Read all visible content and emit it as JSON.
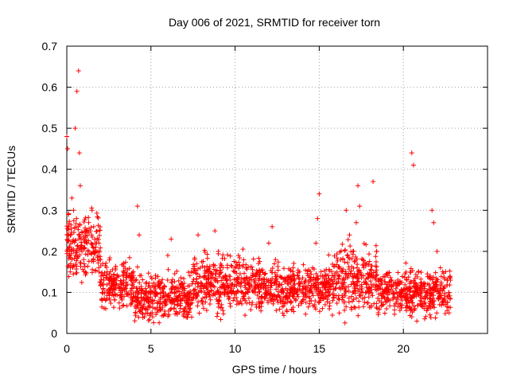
{
  "chart_data": {
    "type": "scatter",
    "title": "Day 006 of 2021, SRMTID for receiver torn",
    "xlabel": "GPS time / hours",
    "ylabel": "SRMTID / TECUs",
    "xlim": [
      0,
      25
    ],
    "ylim": [
      0,
      0.7
    ],
    "xticks": [
      0,
      5,
      10,
      15,
      20
    ],
    "yticks": [
      0,
      0.1,
      0.2,
      0.3,
      0.4,
      0.5,
      0.6,
      0.7
    ],
    "grid": true,
    "marker": "+",
    "color": "#ff0000",
    "x": [
      0.0,
      0.05,
      0.1,
      0.15,
      0.2,
      0.3,
      0.4,
      0.5,
      0.6,
      0.7,
      0.75,
      0.8,
      0.85,
      0.9,
      1.0,
      1.1,
      1.2,
      1.3,
      1.4,
      1.5,
      1.6,
      1.7,
      1.8,
      1.9,
      2.0,
      2.2,
      2.4,
      2.6,
      2.8,
      3.0,
      3.2,
      3.4,
      3.6,
      3.8,
      4.0,
      4.2,
      4.3,
      4.4,
      4.6,
      4.8,
      5.0,
      5.2,
      5.4,
      5.6,
      5.8,
      6.0,
      6.2,
      6.4,
      6.6,
      6.8,
      7.0,
      7.2,
      7.4,
      7.6,
      7.8,
      8.0,
      8.2,
      8.4,
      8.6,
      8.8,
      9.0,
      9.2,
      9.4,
      9.6,
      9.8,
      10.0,
      10.2,
      10.4,
      10.6,
      10.8,
      11.0,
      11.2,
      11.4,
      11.6,
      11.8,
      12.0,
      12.2,
      12.4,
      12.6,
      12.8,
      13.0,
      13.2,
      13.4,
      13.6,
      13.8,
      14.0,
      14.2,
      14.4,
      14.6,
      14.8,
      14.9,
      15.0,
      15.2,
      15.4,
      15.6,
      15.8,
      16.0,
      16.2,
      16.4,
      16.6,
      16.8,
      17.0,
      17.2,
      17.3,
      17.4,
      17.6,
      17.8,
      18.0,
      18.2,
      18.4,
      18.6,
      18.8,
      19.0,
      19.2,
      19.4,
      19.6,
      19.8,
      20.0,
      20.2,
      20.4,
      20.5,
      20.6,
      20.7,
      20.8,
      21.0,
      21.2,
      21.4,
      21.6,
      21.7,
      21.8,
      22.0,
      22.2,
      22.4,
      22.6,
      22.8
    ],
    "y": [
      0.48,
      0.45,
      0.26,
      0.2,
      0.15,
      0.33,
      0.3,
      0.5,
      0.59,
      0.64,
      0.44,
      0.36,
      0.23,
      0.2,
      0.18,
      0.24,
      0.22,
      0.27,
      0.25,
      0.3,
      0.26,
      0.22,
      0.2,
      0.16,
      0.18,
      0.13,
      0.15,
      0.11,
      0.12,
      0.14,
      0.1,
      0.09,
      0.12,
      0.07,
      0.09,
      0.31,
      0.24,
      0.06,
      0.08,
      0.05,
      0.1,
      0.08,
      0.12,
      0.06,
      0.09,
      0.19,
      0.23,
      0.1,
      0.07,
      0.12,
      0.06,
      0.09,
      0.15,
      0.18,
      0.24,
      0.08,
      0.1,
      0.14,
      0.12,
      0.25,
      0.2,
      0.07,
      0.1,
      0.09,
      0.12,
      0.16,
      0.19,
      0.1,
      0.08,
      0.12,
      0.07,
      0.1,
      0.13,
      0.09,
      0.11,
      0.22,
      0.26,
      0.18,
      0.12,
      0.1,
      0.09,
      0.14,
      0.11,
      0.08,
      0.12,
      0.1,
      0.13,
      0.09,
      0.16,
      0.22,
      0.28,
      0.34,
      0.14,
      0.1,
      0.06,
      0.08,
      0.11,
      0.14,
      0.18,
      0.3,
      0.24,
      0.2,
      0.27,
      0.36,
      0.31,
      0.18,
      0.12,
      0.1,
      0.37,
      0.2,
      0.11,
      0.09,
      0.06,
      0.08,
      0.12,
      0.1,
      0.07,
      0.09,
      0.11,
      0.08,
      0.44,
      0.41,
      0.06,
      0.03,
      0.08,
      0.12,
      0.1,
      0.14,
      0.3,
      0.27,
      0.2,
      0.16,
      0.11,
      0.09,
      0.13
    ],
    "dense_cloud": [
      {
        "x_start": 0.0,
        "x_end": 2.0,
        "y_mid": 0.21,
        "spread": 0.07
      },
      {
        "x_start": 2.0,
        "x_end": 4.0,
        "y_mid": 0.12,
        "spread": 0.05
      },
      {
        "x_start": 4.0,
        "x_end": 7.5,
        "y_mid": 0.09,
        "spread": 0.05
      },
      {
        "x_start": 7.5,
        "x_end": 11.5,
        "y_mid": 0.12,
        "spread": 0.06
      },
      {
        "x_start": 11.5,
        "x_end": 15.5,
        "y_mid": 0.11,
        "spread": 0.05
      },
      {
        "x_start": 15.5,
        "x_end": 18.5,
        "y_mid": 0.13,
        "spread": 0.07
      },
      {
        "x_start": 18.5,
        "x_end": 22.8,
        "y_mid": 0.1,
        "spread": 0.05
      }
    ]
  }
}
